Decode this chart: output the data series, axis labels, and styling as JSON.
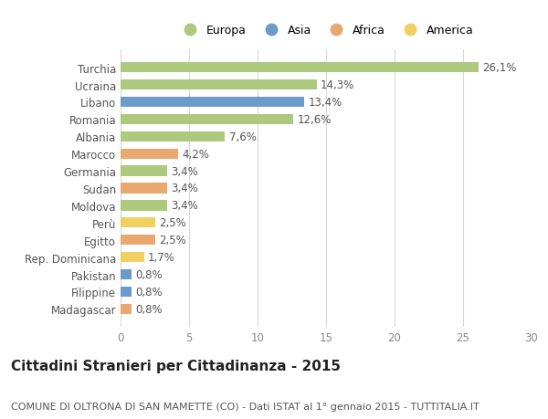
{
  "countries": [
    "Turchia",
    "Ucraina",
    "Libano",
    "Romania",
    "Albania",
    "Marocco",
    "Germania",
    "Sudan",
    "Moldova",
    "Perù",
    "Egitto",
    "Rep. Dominicana",
    "Pakistan",
    "Filippine",
    "Madagascar"
  ],
  "values": [
    26.1,
    14.3,
    13.4,
    12.6,
    7.6,
    4.2,
    3.4,
    3.4,
    3.4,
    2.5,
    2.5,
    1.7,
    0.8,
    0.8,
    0.8
  ],
  "labels": [
    "26,1%",
    "14,3%",
    "13,4%",
    "12,6%",
    "7,6%",
    "4,2%",
    "3,4%",
    "3,4%",
    "3,4%",
    "2,5%",
    "2,5%",
    "1,7%",
    "0,8%",
    "0,8%",
    "0,8%"
  ],
  "continents": [
    "Europa",
    "Europa",
    "Asia",
    "Europa",
    "Europa",
    "Africa",
    "Europa",
    "Africa",
    "Europa",
    "America",
    "Africa",
    "America",
    "Asia",
    "Asia",
    "Africa"
  ],
  "colors": {
    "Europa": "#adc97e",
    "Asia": "#6b9bc9",
    "Africa": "#e8a86e",
    "America": "#f0d060"
  },
  "title": "Cittadini Stranieri per Cittadinanza - 2015",
  "subtitle": "COMUNE DI OLTRONA DI SAN MAMETTE (CO) - Dati ISTAT al 1° gennaio 2015 - TUTTITALIA.IT",
  "xlim": [
    0,
    30
  ],
  "xticks": [
    0,
    5,
    10,
    15,
    20,
    25,
    30
  ],
  "background_color": "#ffffff",
  "grid_color": "#d8d8d8",
  "bar_height": 0.6,
  "title_fontsize": 11,
  "subtitle_fontsize": 8,
  "tick_fontsize": 8.5,
  "label_fontsize": 8.5
}
